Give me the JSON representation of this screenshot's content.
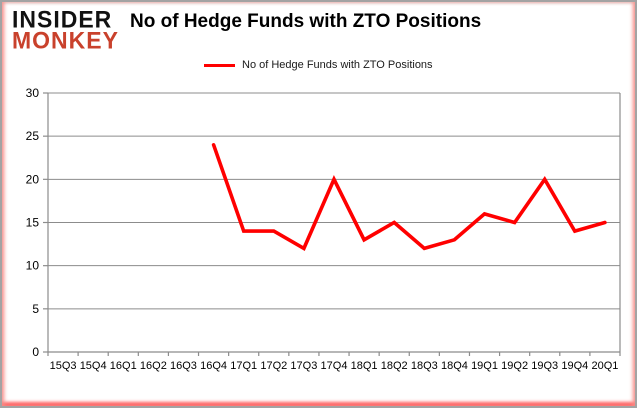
{
  "logo": {
    "line1": "INSIDER",
    "line2": "MONKEY"
  },
  "header": {
    "title": "No of Hedge Funds with ZTO Positions"
  },
  "legend": {
    "label": "No of Hedge Funds with ZTO Positions",
    "line_color": "#ff0000"
  },
  "colors": {
    "series_red": "#ff0000",
    "gridline_gray": "#8c8c8c",
    "axis_gray": "#8c8c8c",
    "logo_red": "#c9412c",
    "border_glow_red": "#ff1919"
  },
  "chart_data": {
    "type": "line",
    "title": "No of Hedge Funds with ZTO Positions",
    "categories": [
      "15Q3",
      "15Q4",
      "16Q1",
      "16Q2",
      "16Q3",
      "16Q4",
      "17Q1",
      "17Q2",
      "17Q3",
      "17Q4",
      "18Q1",
      "18Q2",
      "18Q3",
      "18Q4",
      "19Q1",
      "19Q2",
      "19Q3",
      "19Q4",
      "20Q1"
    ],
    "series": [
      {
        "name": "No of Hedge Funds with ZTO Positions",
        "color": "#ff0000",
        "values": [
          null,
          null,
          null,
          null,
          null,
          24,
          14,
          14,
          12,
          20,
          13,
          15,
          12,
          13,
          16,
          15,
          20,
          14,
          15
        ]
      }
    ],
    "ylim": [
      0,
      30
    ],
    "ytick_step": 5,
    "yticks": [
      0,
      5,
      10,
      15,
      20,
      25,
      30
    ],
    "grid": true,
    "legend_position": "top"
  }
}
